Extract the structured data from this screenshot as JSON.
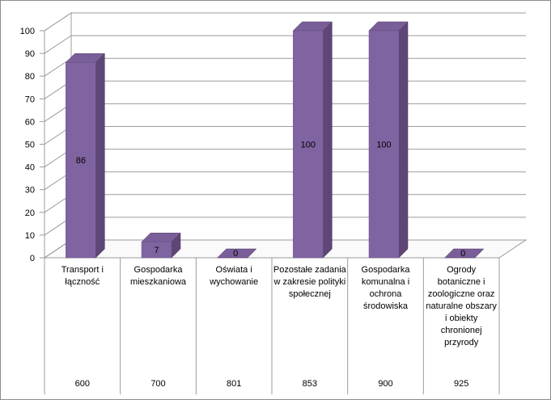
{
  "chart_data": {
    "type": "bar",
    "style": "3d-column",
    "title": "",
    "xlabel": "",
    "ylabel": "",
    "ylim": [
      0,
      100
    ],
    "yticks": [
      0,
      10,
      20,
      30,
      40,
      50,
      60,
      70,
      80,
      90,
      100
    ],
    "grid": true,
    "categories": [
      "Transport i łączność",
      "Gospodarka mieszkaniowa",
      "Oświata i wychowanie",
      "Pozostałe zadania w zakresie polityki społecznej",
      "Gospodarka komunalna i ochrona środowiska",
      "Ogrody botaniczne i zoologiczne oraz naturalne obszary i obiekty chronionej przyrody"
    ],
    "codes": [
      "600",
      "700",
      "801",
      "853",
      "900",
      "925"
    ],
    "values": [
      86,
      7,
      0,
      100,
      100,
      0
    ],
    "colors": {
      "front": "#8064A2",
      "side": "#5E4677",
      "top": "#7A5E99"
    }
  }
}
